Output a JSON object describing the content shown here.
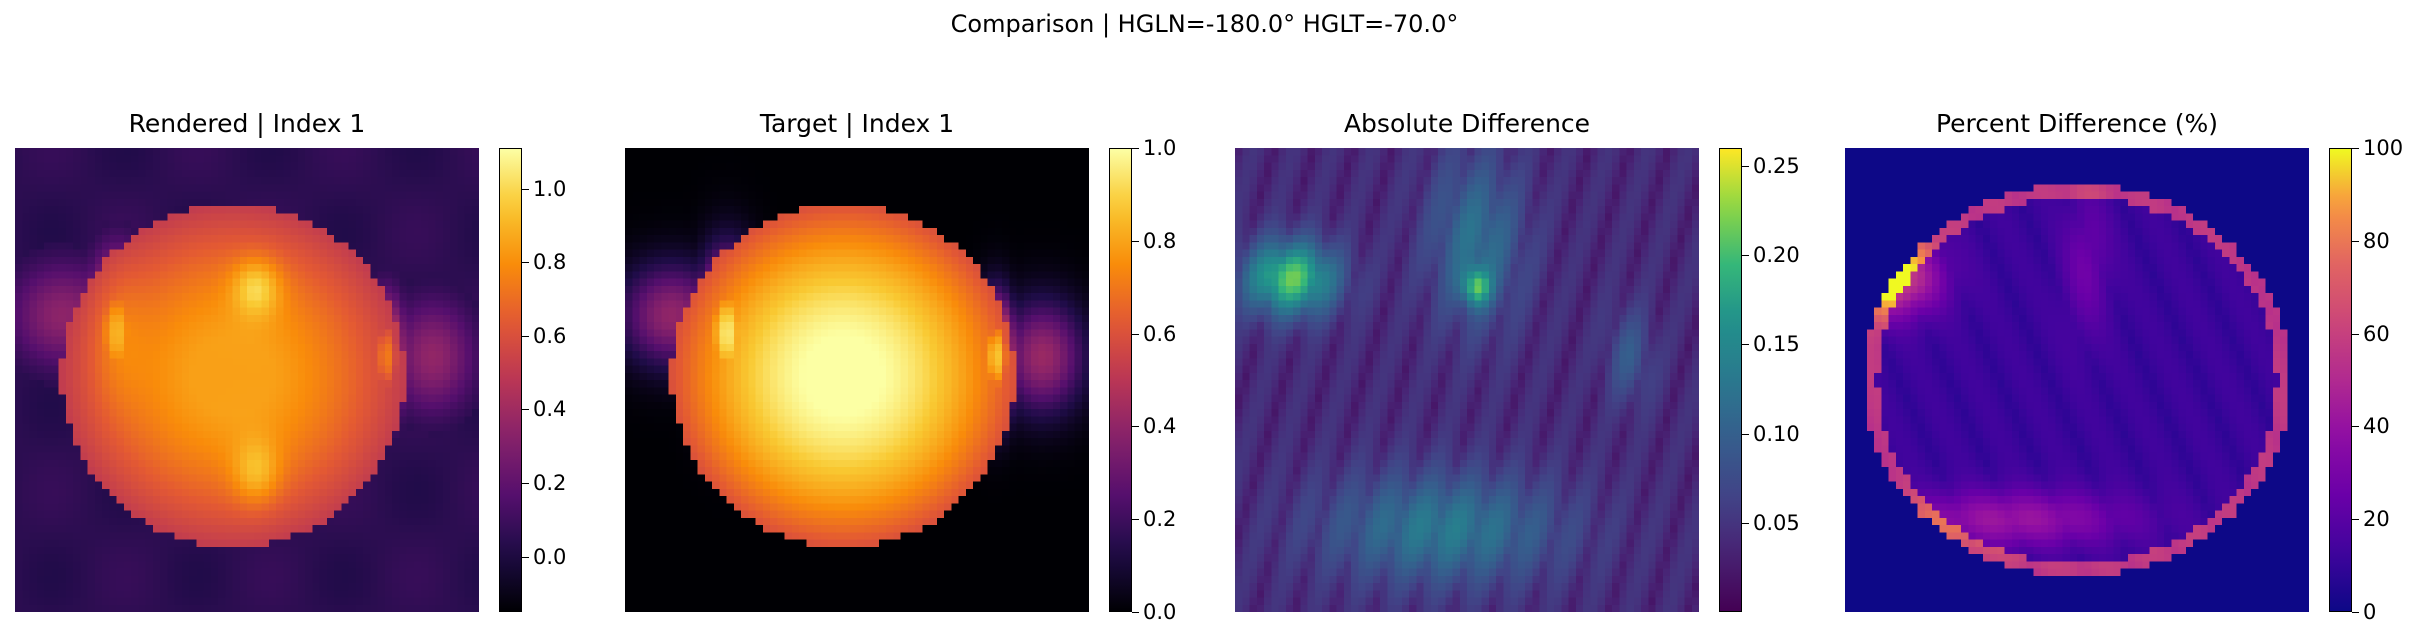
{
  "figure": {
    "suptitle": "Comparison | HGLN=-180.0° HGLT=-70.0°"
  },
  "chart_data": [
    {
      "type": "heatmap",
      "title": "Rendered | Index 1",
      "colormap": "inferno",
      "clim": [
        -0.15,
        1.11
      ],
      "colorbar_ticks": [
        0.0,
        0.2,
        0.4,
        0.6,
        0.8,
        1.0
      ],
      "colorbar_labels": [
        "0.0",
        "0.2",
        "0.4",
        "0.6",
        "0.8",
        "1.0"
      ],
      "grid_size": 64
    },
    {
      "type": "heatmap",
      "title": "Target | Index 1",
      "colormap": "inferno",
      "clim": [
        0.0,
        1.0
      ],
      "colorbar_ticks": [
        0.0,
        0.2,
        0.4,
        0.6,
        0.8,
        1.0
      ],
      "colorbar_labels": [
        "0.0",
        "0.2",
        "0.4",
        "0.6",
        "0.8",
        "1.0"
      ],
      "grid_size": 64
    },
    {
      "type": "heatmap",
      "title": "Absolute Difference",
      "colormap": "viridis",
      "clim": [
        0.0,
        0.26
      ],
      "colorbar_ticks": [
        0.05,
        0.1,
        0.15,
        0.2,
        0.25
      ],
      "colorbar_labels": [
        "0.05",
        "0.10",
        "0.15",
        "0.20",
        "0.25"
      ],
      "grid_size": 64
    },
    {
      "type": "heatmap",
      "title": "Percent Difference (%)",
      "colormap": "plasma",
      "clim": [
        0,
        100
      ],
      "colorbar_ticks": [
        0,
        20,
        40,
        60,
        80,
        100
      ],
      "colorbar_labels": [
        "0",
        "20",
        "40",
        "60",
        "80",
        "100"
      ],
      "grid_size": 64
    }
  ]
}
